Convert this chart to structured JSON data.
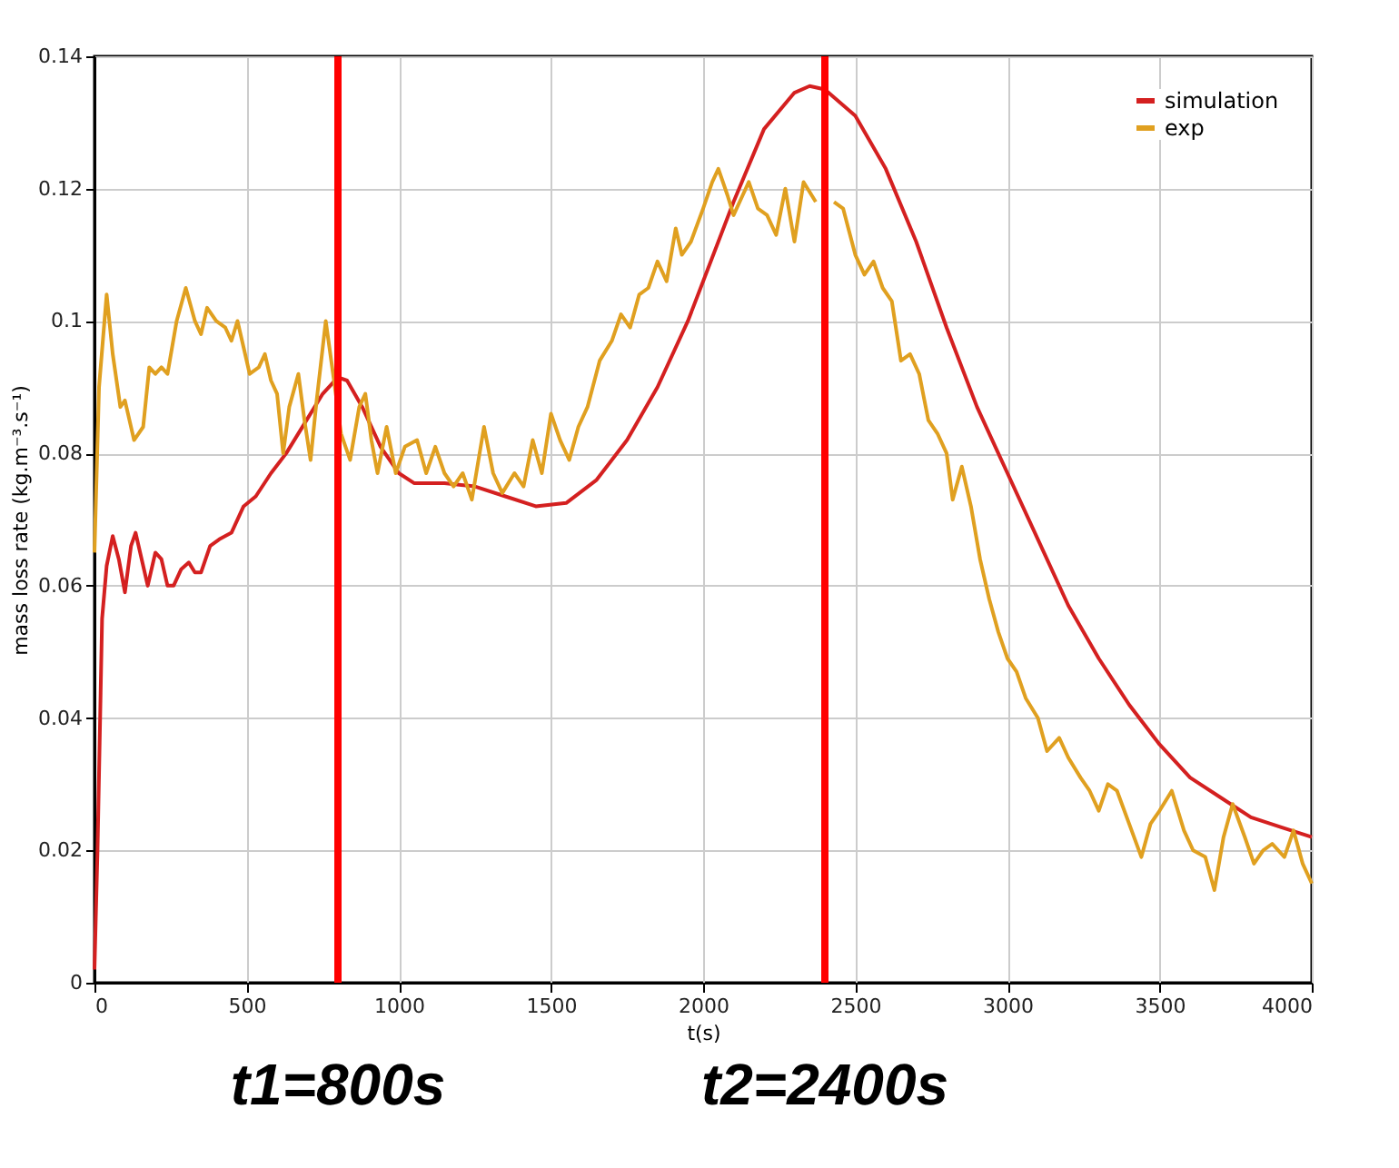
{
  "chart_data": {
    "type": "line",
    "xlabel": "t(s)",
    "ylabel": "mass loss rate (kg.m⁻³.s⁻¹)",
    "xlim": [
      0,
      4000
    ],
    "xticks": [
      0,
      500,
      1000,
      1500,
      2000,
      2500,
      3000,
      3500,
      4000
    ],
    "ylim": [
      0,
      0.14
    ],
    "yticks": [
      0,
      0.02,
      0.04,
      0.06,
      0.08,
      0.1,
      0.12,
      0.14
    ],
    "grid": true,
    "legend": "top right",
    "line_style": "solid",
    "marker": "none",
    "series": [
      {
        "name": "simulation",
        "color": "#d42020",
        "x": [
          0,
          10,
          25,
          40,
          60,
          80,
          100,
          120,
          135,
          160,
          175,
          200,
          220,
          240,
          260,
          285,
          310,
          330,
          350,
          380,
          410,
          450,
          490,
          530,
          580,
          630,
          690,
          750,
          800,
          830,
          880,
          940,
          1000,
          1050,
          1150,
          1250,
          1350,
          1450,
          1550,
          1650,
          1750,
          1850,
          1950,
          2000,
          2100,
          2200,
          2300,
          2350,
          2400,
          2500,
          2600,
          2700,
          2800,
          2900,
          3000,
          3100,
          3200,
          3300,
          3400,
          3500,
          3600,
          3700,
          3800,
          3900,
          4000
        ],
        "values": [
          0.002,
          0.02,
          0.055,
          0.063,
          0.0675,
          0.064,
          0.059,
          0.066,
          0.068,
          0.063,
          0.06,
          0.065,
          0.064,
          0.06,
          0.06,
          0.0625,
          0.0635,
          0.062,
          0.062,
          0.066,
          0.067,
          0.068,
          0.072,
          0.0735,
          0.077,
          0.08,
          0.0845,
          0.089,
          0.0915,
          0.091,
          0.087,
          0.081,
          0.077,
          0.0755,
          0.0755,
          0.075,
          0.0735,
          0.072,
          0.0725,
          0.076,
          0.082,
          0.09,
          0.1,
          0.106,
          0.118,
          0.129,
          0.1345,
          0.1355,
          0.135,
          0.131,
          0.123,
          0.112,
          0.099,
          0.087,
          0.077,
          0.067,
          0.057,
          0.049,
          0.042,
          0.036,
          0.031,
          0.028,
          0.025,
          0.0235,
          0.022
        ]
      },
      {
        "name": "exp",
        "color": "#e0a020",
        "x": [
          0,
          15,
          40,
          60,
          85,
          100,
          130,
          160,
          180,
          200,
          220,
          240,
          270,
          300,
          330,
          350,
          370,
          400,
          430,
          450,
          470,
          490,
          510,
          540,
          560,
          580,
          600,
          620,
          640,
          670,
          690,
          710,
          730,
          760,
          790,
          810,
          840,
          870,
          890,
          910,
          930,
          960,
          990,
          1020,
          1060,
          1090,
          1120,
          1150,
          1180,
          1210,
          1240,
          1280,
          1310,
          1340,
          1380,
          1410,
          1440,
          1470,
          1500,
          1530,
          1560,
          1590,
          1620,
          1660,
          1700,
          1730,
          1760,
          1790,
          1820,
          1850,
          1880,
          1910,
          1930,
          1960,
          2000,
          2030,
          2050,
          2080,
          2100,
          2130,
          2150,
          2180,
          2210,
          2240,
          2270,
          2300,
          2330,
          2370,
          2400,
          2430,
          2460,
          2500,
          2530,
          2560,
          2590,
          2620,
          2650,
          2680,
          2710,
          2740,
          2770,
          2800,
          2820,
          2850,
          2880,
          2910,
          2940,
          2970,
          3000,
          3030,
          3060,
          3100,
          3130,
          3170,
          3200,
          3240,
          3270,
          3300,
          3330,
          3360,
          3400,
          3440,
          3470,
          3500,
          3540,
          3580,
          3610,
          3650,
          3680,
          3710,
          3740,
          3780,
          3810,
          3840,
          3870,
          3910,
          3940,
          3970,
          4000
        ],
        "values": [
          0.065,
          0.09,
          0.104,
          0.095,
          0.087,
          0.088,
          0.082,
          0.084,
          0.093,
          0.092,
          0.093,
          0.092,
          0.1,
          0.105,
          0.1,
          0.098,
          0.102,
          0.1,
          0.099,
          0.097,
          0.1,
          0.096,
          0.092,
          0.093,
          0.095,
          0.091,
          0.089,
          0.08,
          0.087,
          0.092,
          0.085,
          0.079,
          0.088,
          0.1,
          0.09,
          0.083,
          0.079,
          0.087,
          0.089,
          0.082,
          0.077,
          0.084,
          0.077,
          0.081,
          0.082,
          0.077,
          0.081,
          0.077,
          0.075,
          0.077,
          0.073,
          0.084,
          0.077,
          0.074,
          0.077,
          0.075,
          0.082,
          0.077,
          0.086,
          0.082,
          0.079,
          0.084,
          0.087,
          0.094,
          0.097,
          0.101,
          0.099,
          0.104,
          0.105,
          0.109,
          0.106,
          0.114,
          0.11,
          0.112,
          0.117,
          0.121,
          0.123,
          0.119,
          0.116,
          0.119,
          0.121,
          0.117,
          0.116,
          0.113,
          0.12,
          0.112,
          0.121,
          0.118,
          null,
          0.118,
          0.117,
          0.11,
          0.107,
          0.109,
          0.105,
          0.103,
          0.094,
          0.095,
          0.092,
          0.085,
          0.083,
          0.08,
          0.073,
          0.078,
          0.072,
          0.064,
          0.058,
          0.053,
          0.049,
          0.047,
          0.043,
          0.04,
          0.035,
          0.037,
          0.034,
          0.031,
          0.029,
          0.026,
          0.03,
          0.029,
          0.024,
          0.019,
          0.024,
          0.026,
          0.029,
          0.023,
          0.02,
          0.019,
          0.014,
          0.022,
          0.027,
          0.022,
          0.018,
          0.02,
          0.021,
          0.019,
          0.023,
          0.018,
          0.015
        ]
      }
    ],
    "ref_lines": [
      {
        "axis": "x",
        "value": 800,
        "label": "t1=800s",
        "color": "#ff0000"
      },
      {
        "axis": "x",
        "value": 2400,
        "label": "t2=2400s",
        "color": "#ff0000"
      }
    ]
  }
}
